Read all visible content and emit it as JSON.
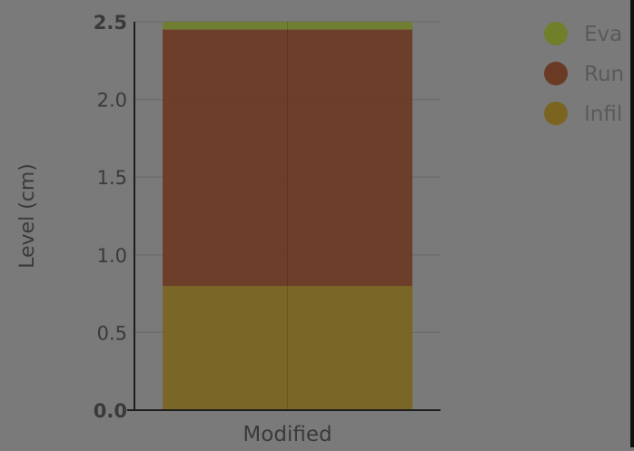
{
  "chart_data": {
    "type": "bar",
    "stacked": true,
    "categories": [
      "Modified"
    ],
    "series": [
      {
        "name": "Infil",
        "values": [
          0.8
        ],
        "color": "#7a6420"
      },
      {
        "name": "Run",
        "values": [
          1.65
        ],
        "color": "#6b3a24"
      },
      {
        "name": "Eva",
        "values": [
          0.05
        ],
        "color": "#6f7f2a"
      }
    ],
    "ylabel": "Level (cm)",
    "xlabel": "",
    "ylim": [
      0,
      2.5
    ],
    "yticks": [
      "0.0",
      "0.5",
      "1.0",
      "1.5",
      "2.0",
      "2.5"
    ],
    "grid": true,
    "legend_position": "top-right",
    "legend": [
      {
        "label": "Eva",
        "color": "#6f7f2a"
      },
      {
        "label": "Run",
        "color": "#6b3a24"
      },
      {
        "label": "Infil",
        "color": "#7a6420"
      }
    ]
  },
  "colors": {
    "background": "#7a7a7a",
    "grid": "#6b6b6b",
    "axis": "#1e1e1e",
    "text": "#3a3a3a",
    "legend_text": "#5a5a5a"
  }
}
